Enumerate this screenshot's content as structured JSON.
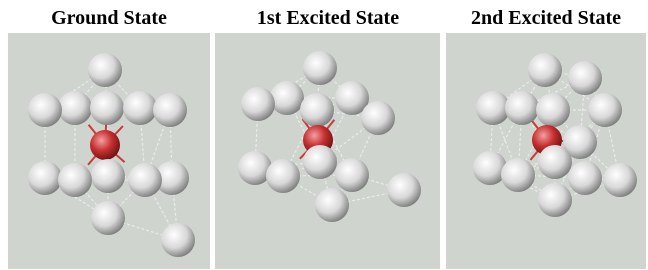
{
  "panels": [
    {
      "title": "Ground State"
    },
    {
      "title": "1st Excited State"
    },
    {
      "title": "2nd Excited State"
    }
  ]
}
